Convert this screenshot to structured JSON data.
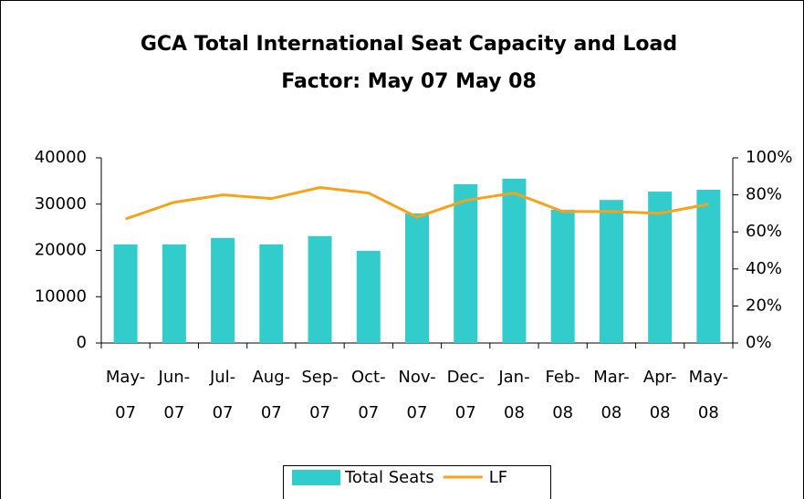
{
  "chart_data": {
    "type": "bar",
    "title": "GCA Total International Seat Capacity and Load Factor: May 07 May 08",
    "categories": [
      "May-07",
      "Jun-07",
      "Jul-07",
      "Aug-07",
      "Sep-07",
      "Oct-07",
      "Nov-07",
      "Dec-07",
      "Jan-08",
      "Feb-08",
      "Mar-08",
      "Apr-08",
      "May-08"
    ],
    "series": [
      {
        "name": "Total Seats",
        "type": "bar",
        "color": "#33cccc",
        "values": [
          21300,
          21300,
          22700,
          21300,
          23100,
          19900,
          28000,
          34300,
          35500,
          28800,
          30900,
          32700,
          33100
        ]
      },
      {
        "name": "LF",
        "type": "line",
        "axis": "y2",
        "color": "#f7a21b",
        "values": [
          67,
          76,
          80,
          78,
          84,
          81,
          68,
          77,
          81,
          71,
          71,
          70,
          75
        ]
      }
    ],
    "ylim": [
      0,
      40000
    ],
    "yticks": [
      0,
      10000,
      20000,
      30000,
      40000
    ],
    "y2lim": [
      0,
      100
    ],
    "y2ticks": [
      {
        "value": 0,
        "label": "0%"
      },
      {
        "value": 20,
        "label": "20%"
      },
      {
        "value": 40,
        "label": "40%"
      },
      {
        "value": 60,
        "label": "60%"
      },
      {
        "value": 80,
        "label": "80%"
      },
      {
        "value": 100,
        "label": "100%"
      }
    ],
    "legend": "bottom"
  }
}
